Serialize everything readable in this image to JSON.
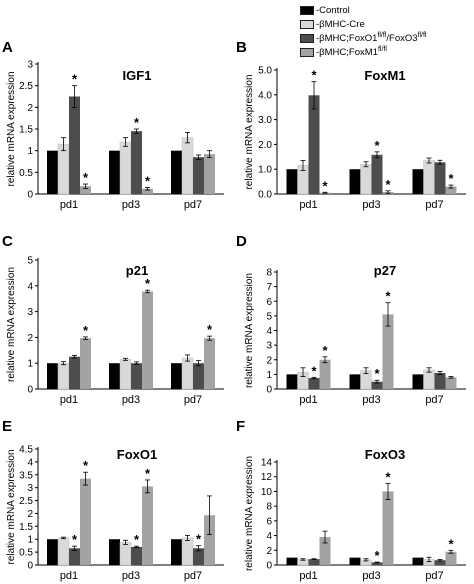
{
  "legend": {
    "items": [
      {
        "label": "-Control",
        "color": "#000000"
      },
      {
        "label": "-βMHC-Cre",
        "color": "#d9d9d9"
      },
      {
        "label": "-βMHC;FoxO1",
        "sup1": "fl/fl",
        "mid": "/FoxO3",
        "sup2": "fl/fl",
        "color": "#4d4d4d"
      },
      {
        "label": "-βMHC;FoxM1",
        "sup1": "fl/fl",
        "color": "#a3a3a3"
      }
    ]
  },
  "series_colors": [
    "#000000",
    "#d9d9d9",
    "#4d4d4d",
    "#a3a3a3"
  ],
  "chart_data": [
    {
      "panel": "A",
      "type": "bar",
      "title": "IGF1",
      "ylabel": "relative mRNA expression",
      "categories": [
        "pd1",
        "pd3",
        "pd7"
      ],
      "ylim": [
        0,
        3
      ],
      "yticks": [
        0,
        0.5,
        1,
        1.5,
        2,
        2.5,
        3
      ],
      "series": [
        {
          "values": [
            1.0,
            1.0,
            1.0
          ],
          "errors": [
            0,
            0,
            0
          ]
        },
        {
          "values": [
            1.15,
            1.2,
            1.3
          ],
          "errors": [
            0.15,
            0.1,
            0.12
          ]
        },
        {
          "values": [
            2.25,
            1.45,
            0.85
          ],
          "errors": [
            0.25,
            0.05,
            0.05
          ]
        },
        {
          "values": [
            0.18,
            0.12,
            0.92
          ],
          "errors": [
            0.05,
            0.03,
            0.08
          ]
        }
      ],
      "stars": [
        [
          1,
          2
        ],
        [
          2,
          2
        ],
        [
          1,
          3
        ],
        [
          2,
          3
        ]
      ]
    },
    {
      "panel": "B",
      "type": "bar",
      "title": "FoxM1",
      "ylabel": "relative mRNA expression",
      "categories": [
        "pd1",
        "pd3",
        "pd7"
      ],
      "ylim": [
        0,
        5
      ],
      "yticks": [
        0,
        1,
        2,
        3,
        4,
        5
      ],
      "ytick_labels": [
        "0.0",
        "1.0",
        "2.0",
        "3.0",
        "4.0",
        "5.0"
      ],
      "series": [
        {
          "values": [
            1.0,
            1.0,
            1.0
          ],
          "errors": [
            0,
            0,
            0
          ]
        },
        {
          "values": [
            1.15,
            1.2,
            1.35
          ],
          "errors": [
            0.2,
            0.1,
            0.1
          ]
        },
        {
          "values": [
            3.98,
            1.58,
            1.28
          ],
          "errors": [
            0.55,
            0.12,
            0.08
          ]
        },
        {
          "values": [
            0.05,
            0.08,
            0.3
          ],
          "errors": [
            0.02,
            0.05,
            0.06
          ]
        }
      ],
      "stars": [
        [
          1,
          2
        ],
        [
          2,
          2
        ],
        [
          1,
          3
        ],
        [
          2,
          3
        ],
        [
          3,
          3
        ]
      ]
    },
    {
      "panel": "C",
      "type": "bar",
      "title": "p21",
      "ylabel": "relative mRNA expression",
      "categories": [
        "pd1",
        "pd3",
        "pd7"
      ],
      "ylim": [
        0,
        5
      ],
      "yticks": [
        0,
        1,
        2,
        3,
        4,
        5
      ],
      "series": [
        {
          "values": [
            1.0,
            1.0,
            1.0
          ],
          "errors": [
            0,
            0,
            0
          ]
        },
        {
          "values": [
            1.0,
            1.15,
            1.2
          ],
          "errors": [
            0.06,
            0.04,
            0.12
          ]
        },
        {
          "values": [
            1.25,
            1.0,
            1.0
          ],
          "errors": [
            0.05,
            0.05,
            0.1
          ]
        },
        {
          "values": [
            1.97,
            3.78,
            1.97
          ],
          "errors": [
            0.05,
            0.05,
            0.08
          ]
        }
      ],
      "stars": [
        [
          1,
          3
        ],
        [
          2,
          3
        ],
        [
          3,
          3
        ]
      ]
    },
    {
      "panel": "D",
      "type": "bar",
      "title": "p27",
      "ylabel": "relative mRNA expression",
      "categories": [
        "pd1",
        "pd3",
        "pd7"
      ],
      "ylim": [
        0,
        8
      ],
      "yticks": [
        0,
        1,
        2,
        3,
        4,
        5,
        6,
        7,
        8
      ],
      "series": [
        {
          "values": [
            1.0,
            1.0,
            1.0
          ],
          "errors": [
            0,
            0,
            0
          ]
        },
        {
          "values": [
            1.15,
            1.25,
            1.3
          ],
          "errors": [
            0.3,
            0.2,
            0.15
          ]
        },
        {
          "values": [
            0.75,
            0.5,
            1.1
          ],
          "errors": [
            0.05,
            0.1,
            0.1
          ]
        },
        {
          "values": [
            2.0,
            5.1,
            0.8
          ],
          "errors": [
            0.2,
            0.8,
            0.06
          ]
        }
      ],
      "stars": [
        [
          1,
          2
        ],
        [
          1,
          3
        ],
        [
          2,
          2
        ],
        [
          2,
          3
        ]
      ]
    },
    {
      "panel": "E",
      "type": "bar",
      "title": "FoxO1",
      "ylabel": "relative mRNA expression",
      "categories": [
        "pd1",
        "pd3",
        "pd7"
      ],
      "ylim": [
        0,
        4.5
      ],
      "yticks": [
        0,
        0.5,
        1,
        1.5,
        2,
        2.5,
        3,
        3.5,
        4,
        4.5
      ],
      "series": [
        {
          "values": [
            1.0,
            1.0,
            1.0
          ],
          "errors": [
            0,
            0,
            0
          ]
        },
        {
          "values": [
            1.05,
            0.88,
            1.05
          ],
          "errors": [
            0.03,
            0.08,
            0.1
          ]
        },
        {
          "values": [
            0.65,
            0.7,
            0.65
          ],
          "errors": [
            0.08,
            0.03,
            0.1
          ]
        },
        {
          "values": [
            3.35,
            3.05,
            1.93
          ],
          "errors": [
            0.25,
            0.25,
            0.75
          ]
        }
      ],
      "stars": [
        [
          1,
          2
        ],
        [
          1,
          3
        ],
        [
          2,
          2
        ],
        [
          2,
          3
        ],
        [
          3,
          2
        ]
      ]
    },
    {
      "panel": "F",
      "type": "bar",
      "title": "FoxO3",
      "ylabel": "relative mRNA expression",
      "categories": [
        "pd1",
        "pd3",
        "pd7"
      ],
      "ylim": [
        0,
        14
      ],
      "yticks": [
        0,
        2,
        4,
        6,
        8,
        10,
        12,
        14
      ],
      "series": [
        {
          "values": [
            1.0,
            1.0,
            1.0
          ],
          "errors": [
            0,
            0,
            0
          ]
        },
        {
          "values": [
            0.75,
            0.7,
            0.75
          ],
          "errors": [
            0.1,
            0.15,
            0.3
          ]
        },
        {
          "values": [
            0.8,
            0.35,
            0.65
          ],
          "errors": [
            0.05,
            0.05,
            0.1
          ]
        },
        {
          "values": [
            3.8,
            10.0,
            1.8
          ],
          "errors": [
            0.8,
            1.1,
            0.2
          ]
        }
      ],
      "stars": [
        [
          2,
          2
        ],
        [
          2,
          3
        ],
        [
          3,
          3
        ]
      ]
    }
  ]
}
